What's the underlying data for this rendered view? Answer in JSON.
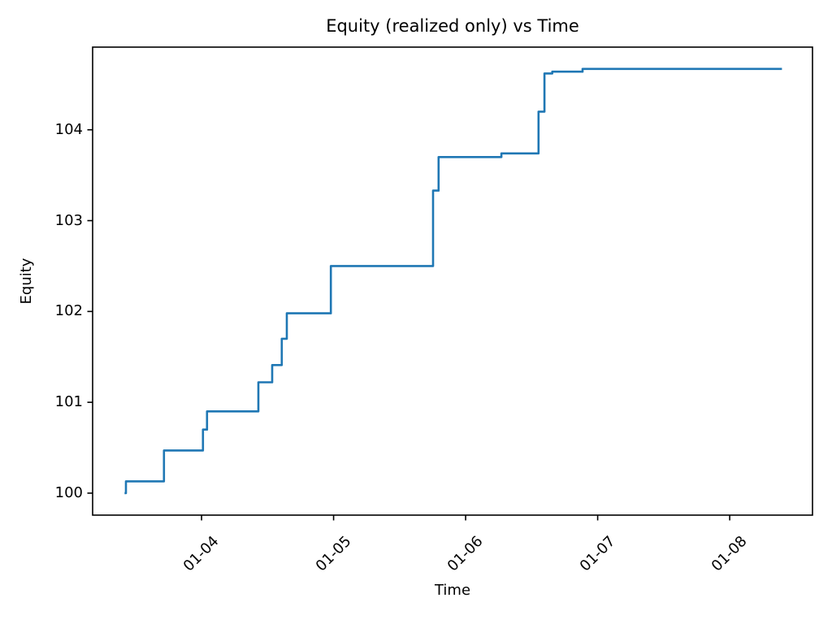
{
  "figure": {
    "background_color": "#ffffff",
    "text_color": "#000000",
    "spine_color": "#000000"
  },
  "chart_data": {
    "type": "line",
    "step_mode": "post",
    "title": "Equity (realized only) vs Time",
    "xlabel": "Time",
    "ylabel": "Equity",
    "line_color": "#1f77b4",
    "grid": false,
    "legend": null,
    "x_ticks": [
      {
        "day": 4,
        "label": "01-04"
      },
      {
        "day": 5,
        "label": "01-05"
      },
      {
        "day": 6,
        "label": "01-06"
      },
      {
        "day": 7,
        "label": "01-07"
      },
      {
        "day": 8,
        "label": "01-08"
      }
    ],
    "y_ticks": [
      100,
      101,
      102,
      103,
      104
    ],
    "xlim_days": [
      3.175,
      8.627
    ],
    "ylim": [
      99.758,
      104.91
    ],
    "points": [
      {
        "t": "01-03 10:00",
        "equity": 100.0
      },
      {
        "t": "01-03 10:15",
        "equity": 100.13
      },
      {
        "t": "01-03 17:10",
        "equity": 100.47
      },
      {
        "t": "01-04 00:15",
        "equity": 100.7
      },
      {
        "t": "01-04 01:00",
        "equity": 100.9
      },
      {
        "t": "01-04 10:20",
        "equity": 101.22
      },
      {
        "t": "01-04 12:50",
        "equity": 101.41
      },
      {
        "t": "01-04 14:35",
        "equity": 101.7
      },
      {
        "t": "01-04 15:30",
        "equity": 101.98
      },
      {
        "t": "01-04 23:30",
        "equity": 102.5
      },
      {
        "t": "01-05 18:05",
        "equity": 103.33
      },
      {
        "t": "01-05 19:05",
        "equity": 103.7
      },
      {
        "t": "01-06 06:30",
        "equity": 103.74
      },
      {
        "t": "01-06 13:15",
        "equity": 104.2
      },
      {
        "t": "01-06 14:20",
        "equity": 104.62
      },
      {
        "t": "01-06 15:45",
        "equity": 104.64
      },
      {
        "t": "01-06 21:15",
        "equity": 104.67
      },
      {
        "t": "01-08 09:30",
        "equity": 104.67
      }
    ]
  }
}
